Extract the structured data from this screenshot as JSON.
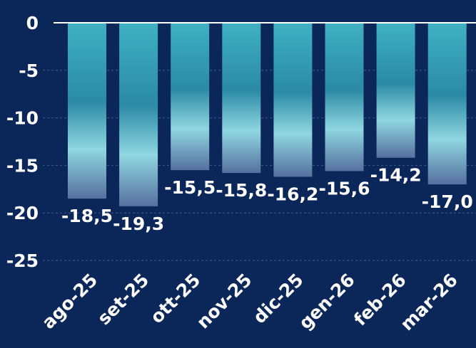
{
  "chart_data": {
    "type": "bar",
    "categories": [
      "ago-25",
      "set-25",
      "ott-25",
      "nov-25",
      "dic-25",
      "gen-26",
      "feb-26",
      "mar-26"
    ],
    "values": [
      -18.5,
      -19.3,
      -15.5,
      -15.8,
      -16.2,
      -15.6,
      -14.2,
      -17.0
    ],
    "value_labels": [
      "-18,5",
      "-19,3",
      "-15,5",
      "-15,8",
      "-16,2",
      "-15,6",
      "-14,2",
      "-17,0"
    ],
    "yticks": [
      0,
      -5,
      -10,
      -15,
      -20,
      -25
    ],
    "ytick_labels": [
      "0",
      "-5",
      "-10",
      "-15",
      "-20",
      "-25"
    ],
    "ylim": [
      -25,
      0
    ],
    "grid": true,
    "legend": "none",
    "colors": {
      "background": "#0b2658",
      "bar_top": "#3fb1c2",
      "bar_mid": "#2b8aa5",
      "bar_light": "#8fd6e0",
      "bar_bottom": "#56709f",
      "text": "#ffffff"
    }
  }
}
